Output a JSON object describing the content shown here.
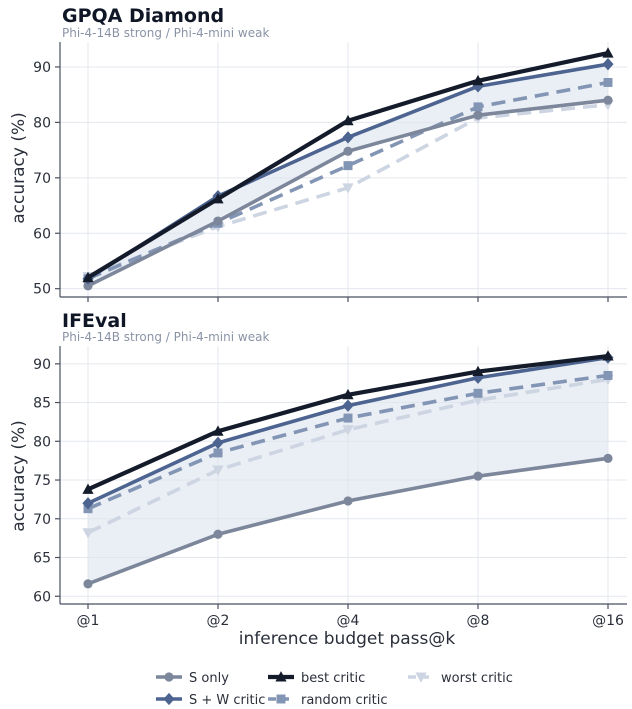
{
  "chart_data": {
    "x_label": "inference budget pass@k",
    "categories": [
      "@1",
      "@2",
      "@4",
      "@8",
      "@16"
    ],
    "legend": {
      "position": "bottom-center",
      "entries": [
        {
          "name": "S only",
          "color": "#7d879b",
          "marker": "circle",
          "dash": "solid"
        },
        {
          "name": "S + W critic",
          "color": "#4d6490",
          "marker": "diamond",
          "dash": "solid"
        },
        {
          "name": "best critic",
          "color": "#141b2b",
          "marker": "triangle-up",
          "dash": "solid"
        },
        {
          "name": "random critic",
          "color": "#8395b4",
          "marker": "square",
          "dash": "dashed"
        },
        {
          "name": "worst critic",
          "color": "#cdd5e2",
          "marker": "triangle-down",
          "dash": "dashed"
        }
      ]
    },
    "panels": [
      {
        "type": "line",
        "title": "GPQA Diamond",
        "subtitle": "Phi-4-14B strong / Phi-4-mini weak",
        "ylabel": "accuracy (%)",
        "ylim": [
          48.5,
          94.5
        ],
        "yticks": [
          50,
          60,
          70,
          80,
          90
        ],
        "grid": true,
        "shaded_band": "between S only and S + W critic",
        "series": [
          {
            "name": "worst critic",
            "values": [
              52.2,
              61.2,
              68.2,
              80.8,
              83.2
            ]
          },
          {
            "name": "random critic",
            "values": [
              51.8,
              61.8,
              72.2,
              82.8,
              87.2
            ]
          },
          {
            "name": "S only",
            "values": [
              50.5,
              62.2,
              74.8,
              81.3,
              84.0
            ]
          },
          {
            "name": "S + W critic",
            "values": [
              51.8,
              66.7,
              77.3,
              86.5,
              90.5
            ]
          },
          {
            "name": "best critic",
            "values": [
              52.0,
              66.2,
              80.3,
              87.5,
              92.5
            ]
          }
        ]
      },
      {
        "type": "line",
        "title": "IFEval",
        "subtitle": "Phi-4-14B strong / Phi-4-mini weak",
        "ylabel": "accuracy (%)",
        "ylim": [
          59.0,
          92.3
        ],
        "yticks": [
          60,
          65,
          70,
          75,
          80,
          85,
          90
        ],
        "grid": true,
        "shaded_band": "between S only and S + W critic",
        "series": [
          {
            "name": "worst critic",
            "values": [
              68.2,
              76.3,
              81.5,
              85.3,
              88.0
            ]
          },
          {
            "name": "random critic",
            "values": [
              71.3,
              78.5,
              83.0,
              86.2,
              88.5
            ]
          },
          {
            "name": "S only",
            "values": [
              61.6,
              68.0,
              72.3,
              75.5,
              77.8
            ]
          },
          {
            "name": "S + W critic",
            "values": [
              72.0,
              79.8,
              84.6,
              88.2,
              90.8
            ]
          },
          {
            "name": "best critic",
            "values": [
              73.8,
              81.3,
              86.0,
              89.0,
              91.0
            ]
          }
        ]
      }
    ]
  }
}
